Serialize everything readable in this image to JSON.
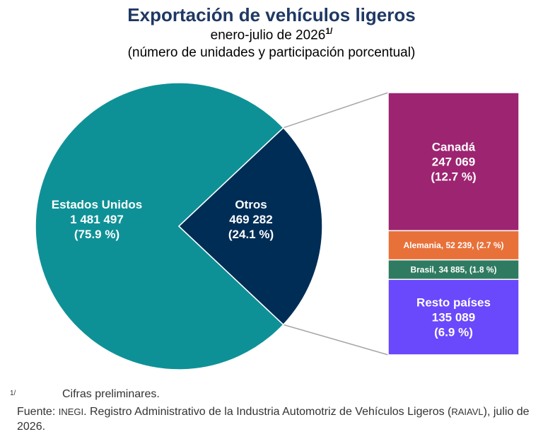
{
  "header": {
    "title": "Exportación de vehículos ligeros",
    "subtitle": "enero-julio de 2026",
    "subtitle_note_mark": "1/",
    "units": "(número de unidades y participación porcentual)"
  },
  "chart_data": {
    "type": "pie",
    "title": "Exportación de vehículos ligeros",
    "subtitle": "enero-julio de 2026",
    "pie": {
      "slices": [
        {
          "label": "Estados Unidos",
          "value_text": "1 481 497",
          "pct_text": "(75.9 %)",
          "value": 1481497,
          "percent": 75.9,
          "color": "#0e9196"
        },
        {
          "label": "Otros",
          "value_text": "469 282",
          "pct_text": "(24.1 %)",
          "value": 469282,
          "percent": 24.1,
          "color": "#002d56"
        }
      ]
    },
    "breakdown": {
      "parent": "Otros",
      "segments": [
        {
          "label": "Canadá",
          "value_text": "247 069",
          "pct_text": "(12.7 %)",
          "value": 247069,
          "percent": 12.7,
          "color": "#9d2471",
          "style": "large"
        },
        {
          "label": "Alemania, 52 239, (2.7 %)",
          "value": 52239,
          "percent": 2.7,
          "color": "#e8713a",
          "style": "inline"
        },
        {
          "label": "Brasil,  34 885, (1.8 %)",
          "value": 34885,
          "percent": 1.8,
          "color": "#2f7b62",
          "style": "inline"
        },
        {
          "label": "Resto países",
          "value_text": "135 089",
          "pct_text": "(6.9 %)",
          "value": 135089,
          "percent": 6.9,
          "color": "#6a48fb",
          "style": "large"
        }
      ]
    }
  },
  "footnote": {
    "mark": "1/",
    "text": "Cifras preliminares."
  },
  "source": {
    "prefix": "Fuente: ",
    "org": "INEGI",
    "text1": ". Registro Administrativo de la Industria Automotriz de Vehículos Ligeros (",
    "acronym": "RAIAVL",
    "text2": "), julio de 2026."
  }
}
